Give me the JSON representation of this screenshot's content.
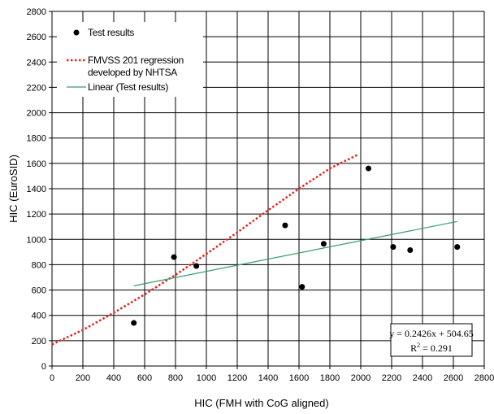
{
  "chart_data": {
    "type": "scatter",
    "xlabel": "HIC (FMH with CoG aligned)",
    "ylabel": "HIC (EuroSID)",
    "xlim": [
      0,
      2800
    ],
    "ylim": [
      0,
      2800
    ],
    "x_ticks": [
      0,
      200,
      400,
      600,
      800,
      1000,
      1200,
      1400,
      1600,
      1800,
      2000,
      2200,
      2400,
      2600,
      2800
    ],
    "y_ticks": [
      0,
      200,
      400,
      600,
      800,
      1000,
      1200,
      1400,
      1600,
      1800,
      2000,
      2200,
      2400,
      2600,
      2800
    ],
    "grid": true,
    "legend_position": "top-left",
    "series": [
      {
        "name": "Test results",
        "kind": "scatter",
        "color": "#000000",
        "points": [
          {
            "x": 530,
            "y": 340
          },
          {
            "x": 790,
            "y": 860
          },
          {
            "x": 935,
            "y": 790
          },
          {
            "x": 1510,
            "y": 1110
          },
          {
            "x": 1620,
            "y": 625
          },
          {
            "x": 1760,
            "y": 965
          },
          {
            "x": 2050,
            "y": 1560
          },
          {
            "x": 2210,
            "y": 940
          },
          {
            "x": 2320,
            "y": 915
          },
          {
            "x": 2625,
            "y": 940
          }
        ]
      },
      {
        "name": "FMVSS 201 regression developed by NHTSA",
        "legend_lines": [
          "FMVSS 201 regression",
          "developed by NHTSA"
        ],
        "kind": "curve",
        "style": "dotted",
        "color": "#e8201e",
        "points": [
          {
            "x": 0,
            "y": 170
          },
          {
            "x": 200,
            "y": 285
          },
          {
            "x": 400,
            "y": 420
          },
          {
            "x": 600,
            "y": 565
          },
          {
            "x": 800,
            "y": 720
          },
          {
            "x": 1000,
            "y": 885
          },
          {
            "x": 1200,
            "y": 1055
          },
          {
            "x": 1400,
            "y": 1230
          },
          {
            "x": 1600,
            "y": 1400
          },
          {
            "x": 1800,
            "y": 1560
          },
          {
            "x": 1975,
            "y": 1665
          }
        ]
      },
      {
        "name": "Linear (Test results)",
        "kind": "line",
        "style": "solid",
        "color": "#3a9a6a",
        "points": [
          {
            "x": 530,
            "y": 633
          },
          {
            "x": 2625,
            "y": 1141
          }
        ]
      }
    ],
    "annotation": {
      "equation": "y = 0.2426x + 504.65",
      "r2_label": "R",
      "r2_exp": "2",
      "r2_value": " = 0.291"
    }
  }
}
